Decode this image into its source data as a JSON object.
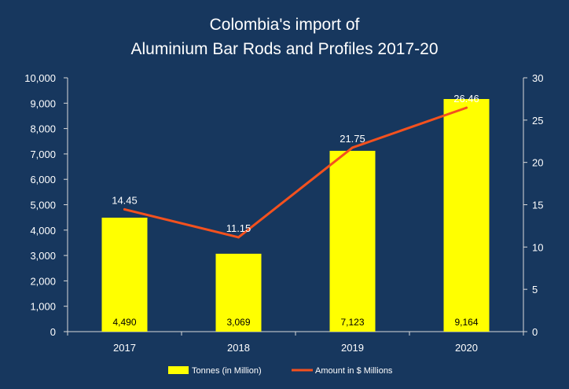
{
  "chart_data": {
    "type": "bar",
    "title": [
      "Colombia's import of",
      "Aluminium Bar Rods and Profiles 2017-20"
    ],
    "categories": [
      "2017",
      "2018",
      "2019",
      "2020"
    ],
    "series": [
      {
        "name": "Tonnes (in Million)",
        "type": "bar",
        "axis": "left",
        "values": [
          4490,
          3069,
          7123,
          9164
        ],
        "labels": [
          "4,490",
          "3,069",
          "7,123",
          "9,164"
        ],
        "color": "#ffff00"
      },
      {
        "name": "Amount in $ Millions",
        "type": "line",
        "axis": "right",
        "values": [
          14.45,
          11.15,
          21.75,
          26.46
        ],
        "labels": [
          "14.45",
          "11.15",
          "21.75",
          "26.46"
        ],
        "color": "#f4511e"
      }
    ],
    "y_left": {
      "ylim": [
        0,
        10000
      ],
      "ticks": [
        0,
        1000,
        2000,
        3000,
        4000,
        5000,
        6000,
        7000,
        8000,
        9000,
        10000
      ],
      "tick_labels": [
        "0",
        "1,000",
        "2,000",
        "3,000",
        "4,000",
        "5,000",
        "6,000",
        "7,000",
        "8,000",
        "9,000",
        "10,000"
      ]
    },
    "y_right": {
      "ylim": [
        0,
        30
      ],
      "ticks": [
        0,
        5,
        10,
        15,
        20,
        25,
        30
      ],
      "tick_labels": [
        "0",
        "5",
        "10",
        "15",
        "20",
        "25",
        "30"
      ]
    },
    "grid": false,
    "legend_position": "bottom-center",
    "background": "#17375e"
  }
}
